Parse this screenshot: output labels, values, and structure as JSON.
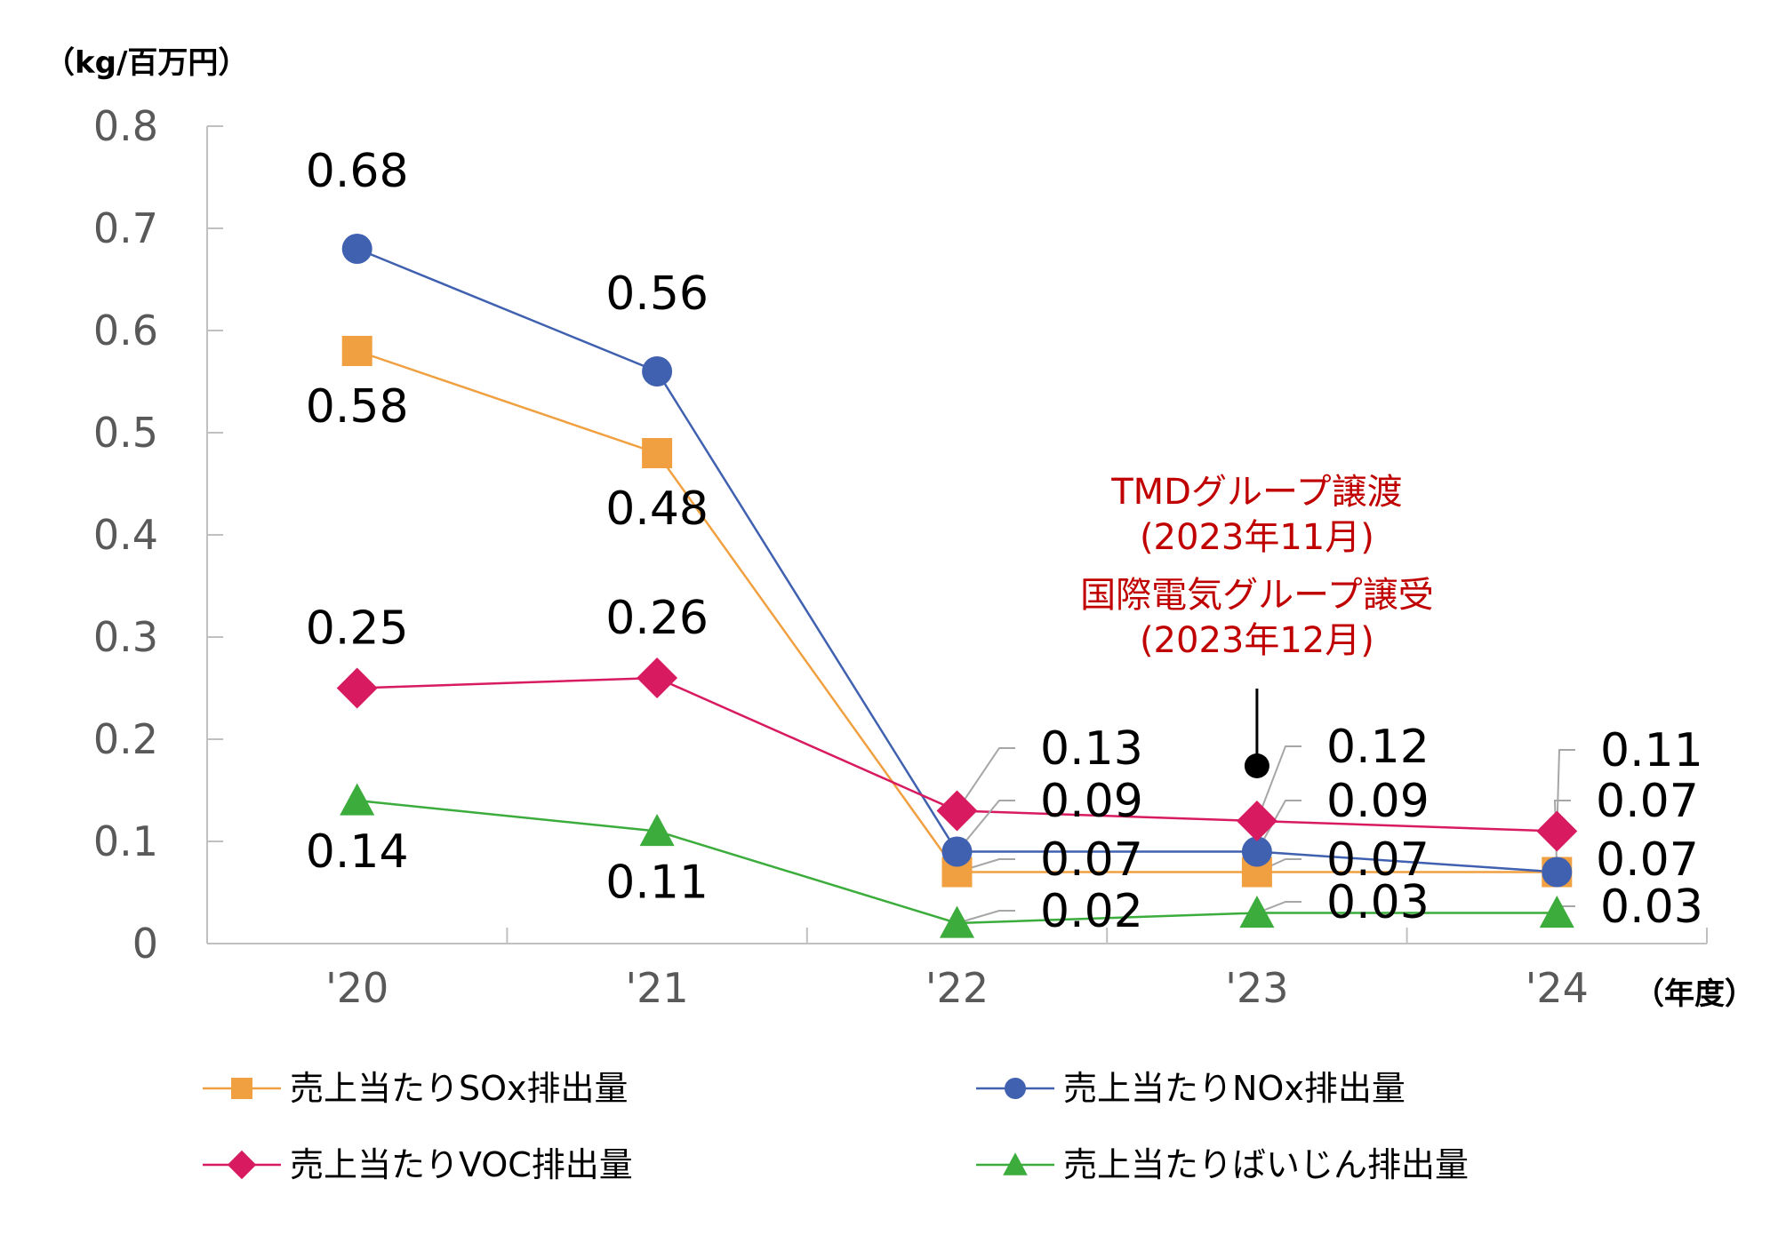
{
  "chart_data": {
    "type": "line",
    "y_unit_label": "（kg/百万円）",
    "x_unit_label": "（年度）",
    "categories": [
      "'20",
      "'21",
      "'22",
      "'23",
      "'24"
    ],
    "ylim": [
      0,
      0.8
    ],
    "y_ticks": [
      "0",
      "0.1",
      "0.2",
      "0.3",
      "0.4",
      "0.5",
      "0.6",
      "0.7",
      "0.8"
    ],
    "grid": false,
    "legend_position": "bottom",
    "series": [
      {
        "name": "売上当たりSOx排出量",
        "values": [
          0.58,
          0.48,
          0.07,
          0.07,
          0.07
        ],
        "labels": [
          "0.58",
          "0.48",
          "0.07",
          "0.07",
          "0.07"
        ],
        "color": "#f0a040",
        "marker": "square"
      },
      {
        "name": "売上当たりNOx排出量",
        "values": [
          0.68,
          0.56,
          0.09,
          0.09,
          0.07
        ],
        "labels": [
          "0.68",
          "0.56",
          "0.09",
          "0.09",
          "0.07"
        ],
        "color": "#4060b0",
        "marker": "circle"
      },
      {
        "name": "売上当たりVOC排出量",
        "values": [
          0.25,
          0.26,
          0.13,
          0.12,
          0.11
        ],
        "labels": [
          "0.25",
          "0.26",
          "0.13",
          "0.12",
          "0.11"
        ],
        "color": "#d81b60",
        "marker": "diamond"
      },
      {
        "name": "売上当たりばいじん排出量",
        "values": [
          0.14,
          0.11,
          0.02,
          0.03,
          0.03
        ],
        "labels": [
          "0.14",
          "0.11",
          "0.02",
          "0.03",
          "0.03"
        ],
        "color": "#3cac3c",
        "marker": "triangle"
      }
    ],
    "annotation": {
      "lines": [
        "TMDグループ譲渡",
        "(2023年11月)",
        "国際電気グループ譲受",
        "(2023年12月)"
      ],
      "color": "#c00000",
      "category": "'23"
    }
  }
}
